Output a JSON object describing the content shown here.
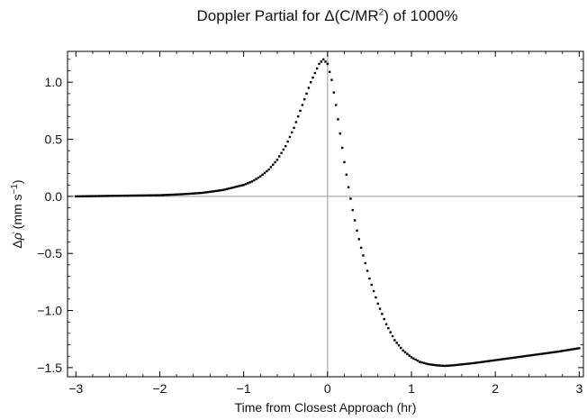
{
  "chart_data": {
    "type": "scatter",
    "title": {
      "prefix": "Doppler Partial for Δ(C/MR",
      "exponent": "2",
      "suffix": ") of 1000%"
    },
    "xlabel": "Time from Closest Approach  (hr)",
    "ylabel": {
      "delta": "Δ",
      "symbol": "ρ̇",
      "units_prefix": "  (mm s",
      "units_exponent": "−1",
      "units_suffix": ")"
    },
    "xlim": [
      -3.1,
      3.05
    ],
    "ylim": [
      -1.58,
      1.27
    ],
    "x_ticks": [
      -3,
      -2,
      -1,
      0,
      1,
      2,
      3
    ],
    "x_tick_labels": [
      "−3",
      "−2",
      "−1",
      "0",
      "1",
      "2",
      "3"
    ],
    "y_ticks": [
      -1.5,
      -1.0,
      -0.5,
      0.0,
      0.5,
      1.0
    ],
    "y_tick_labels": [
      "−1.5",
      "−1.0",
      "−0.5",
      "0.0",
      "0.5",
      "1.0"
    ],
    "grid": false,
    "reference_lines": {
      "x": 0,
      "y": 0
    },
    "series": [
      {
        "marker_color": "#000000",
        "x": [
          -3.0,
          -2.5,
          -2.0,
          -1.75,
          -1.5,
          -1.25,
          -1.0,
          -0.9,
          -0.8,
          -0.7,
          -0.6,
          -0.5,
          -0.4,
          -0.3,
          -0.2,
          -0.1,
          -0.05,
          0.0,
          0.05,
          0.1,
          0.15,
          0.2,
          0.25,
          0.3,
          0.35,
          0.4,
          0.5,
          0.6,
          0.7,
          0.8,
          0.9,
          1.0,
          1.1,
          1.2,
          1.3,
          1.4,
          1.5,
          1.75,
          2.0,
          2.25,
          2.5,
          2.75,
          3.0
        ],
        "y": [
          0.0,
          0.005,
          0.01,
          0.018,
          0.03,
          0.055,
          0.1,
          0.13,
          0.175,
          0.235,
          0.32,
          0.44,
          0.6,
          0.8,
          1.0,
          1.16,
          1.2,
          1.16,
          1.02,
          0.8,
          0.55,
          0.3,
          0.08,
          -0.12,
          -0.3,
          -0.45,
          -0.72,
          -0.94,
          -1.12,
          -1.26,
          -1.35,
          -1.41,
          -1.45,
          -1.47,
          -1.48,
          -1.485,
          -1.48,
          -1.46,
          -1.435,
          -1.41,
          -1.385,
          -1.36,
          -1.33
        ]
      }
    ]
  }
}
